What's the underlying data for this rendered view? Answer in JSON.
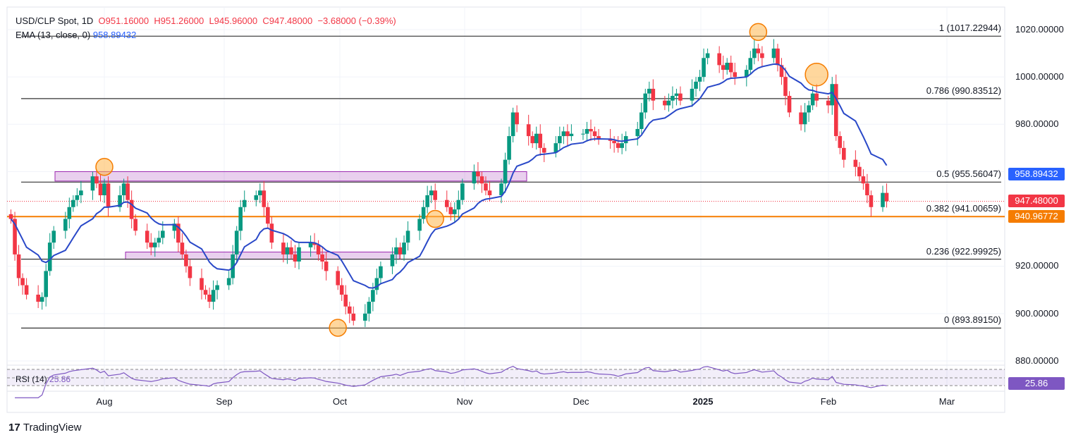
{
  "header": {
    "symbol": "USD/CLP Spot, 1D",
    "open": "O951.16000",
    "high": "H951.26000",
    "low": "L945.96000",
    "close": "C947.48000",
    "change": "−3.68000 (−0.39%)",
    "ema_label": "EMA (13, close, 0)",
    "ema_value": "958.89432"
  },
  "rsi": {
    "label": "RSI (14)",
    "value": "25.86"
  },
  "badges": {
    "ema": "958.89432",
    "price": "947.48000",
    "support": "940.96772",
    "rsi": "25.86"
  },
  "colors": {
    "up": "#089981",
    "down": "#f23645",
    "ema": "#2948c8",
    "orange": "#f57c00",
    "purple": "#9c27b0",
    "rsi": "#7e57c2"
  },
  "y_axis": [
    "1020.00000",
    "1000.00000",
    "980.00000",
    "920.00000",
    "900.00000",
    "880.00000"
  ],
  "x_axis": [
    "Aug",
    "Sep",
    "Oct",
    "Nov",
    "Dec",
    "2025",
    "Feb",
    "Mar"
  ],
  "fib_levels": [
    {
      "label": "1 (1017.22944)",
      "value": 1017.22944
    },
    {
      "label": "0.786 (990.83512)",
      "value": 990.83512
    },
    {
      "label": "0.5 (955.56047)",
      "value": 955.56047
    },
    {
      "label": "0.382 (941.00659)",
      "value": 941.00659
    },
    {
      "label": "0.236 (922.99925)",
      "value": 922.99925
    },
    {
      "label": "0 (893.89150)",
      "value": 893.8915
    }
  ],
  "brand": "TradingView",
  "chart_data": {
    "type": "candlestick",
    "title": "USD/CLP Spot, 1D",
    "start_date": "2024-07-08",
    "ylim": [
      872,
      1028
    ],
    "closes": [
      940,
      925,
      915,
      912,
      908,
      905,
      907,
      918,
      930,
      935,
      940,
      945,
      948,
      950,
      952,
      958,
      955,
      950,
      955,
      945,
      950,
      955,
      948,
      940,
      935,
      930,
      928,
      930,
      932,
      935,
      938,
      930,
      925,
      920,
      915,
      910,
      908,
      905,
      910,
      912,
      915,
      925,
      935,
      945,
      948,
      950,
      952,
      945,
      938,
      930,
      925,
      928,
      925,
      922,
      928,
      930,
      929,
      925,
      922,
      918,
      912,
      908,
      903,
      900,
      897,
      900,
      905,
      910,
      915,
      920,
      925,
      928,
      925,
      930,
      935,
      940,
      945,
      950,
      952,
      948,
      945,
      942,
      944,
      948,
      955,
      960,
      958,
      955,
      952,
      950,
      955,
      965,
      975,
      985,
      980,
      975,
      972,
      976,
      970,
      968,
      972,
      975,
      977,
      975,
      976,
      976,
      978,
      977,
      975,
      974,
      973,
      972,
      970,
      972,
      975,
      978,
      985,
      993,
      995,
      990,
      988,
      990,
      992,
      993,
      990,
      995,
      998,
      1000,
      1008,
      1010,
      1005,
      1003,
      1006,
      1002,
      1000,
      1003,
      1008,
      1012,
      1010,
      1008,
      1012,
      1005,
      1000,
      992,
      985,
      980,
      985,
      988,
      993,
      990,
      988,
      997,
      975,
      970,
      965,
      962,
      958,
      955,
      950,
      945,
      951,
      947.48
    ],
    "ema_period": 13,
    "horizontal_support": 940.96772,
    "zones": [
      {
        "from": 956,
        "to": 960
      },
      {
        "from": 923,
        "to": 926
      }
    ],
    "markers": [
      {
        "date": "2024-08-01",
        "price": 962
      },
      {
        "date": "2024-09-30",
        "price": 894
      },
      {
        "date": "2024-10-25",
        "price": 940
      },
      {
        "date": "2025-01-16",
        "price": 1019
      },
      {
        "date": "2025-01-31",
        "price": 1001
      }
    ]
  }
}
